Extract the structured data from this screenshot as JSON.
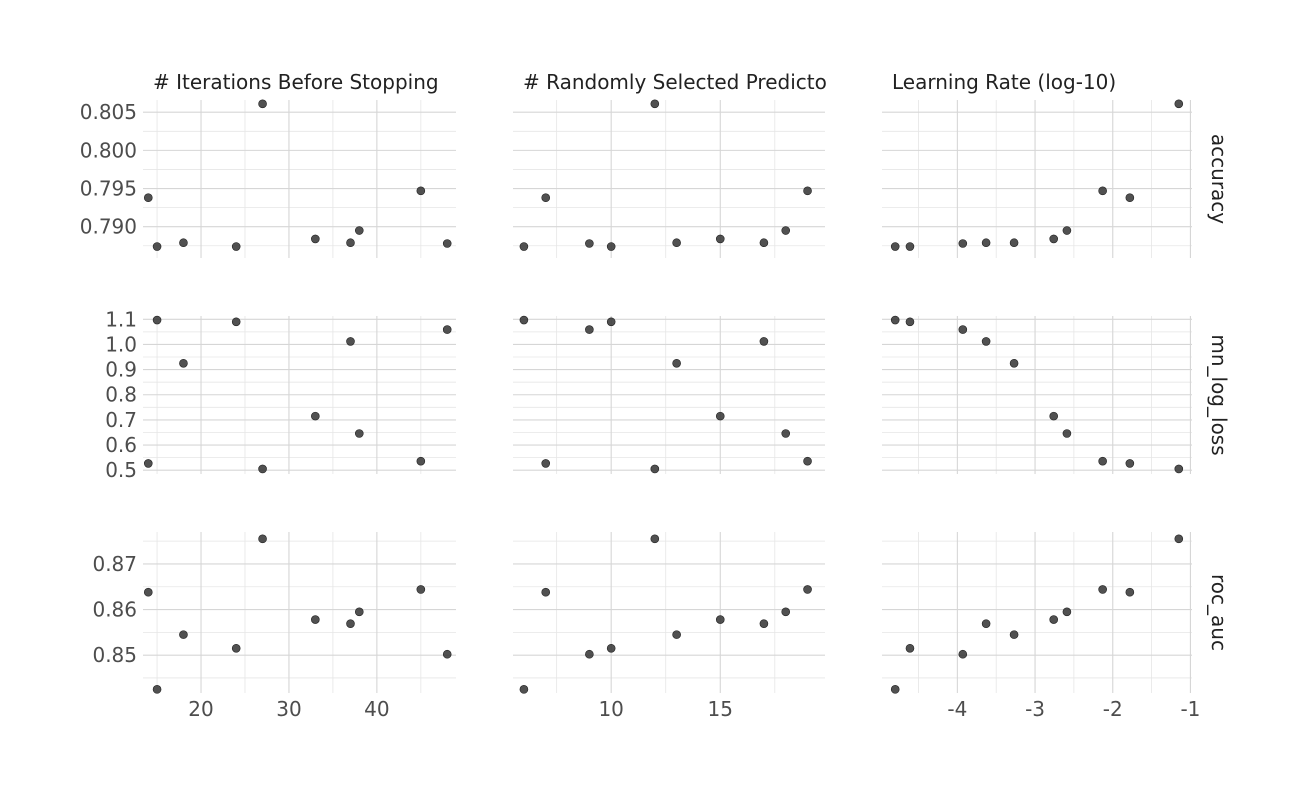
{
  "chart_data": {
    "type": "scatter",
    "facets": {
      "columns": [
        "# Iterations Before Stopping",
        "# Randomly Selected Predicto",
        "Learning Rate (log-10)"
      ],
      "rows": [
        "accuracy",
        "mn_log_loss",
        "roc_auc"
      ]
    },
    "x_axes": [
      {
        "range": [
          13.4,
          49.0
        ],
        "ticks": [
          20,
          30,
          40
        ],
        "tick_labels": [
          "20",
          "30",
          "40"
        ]
      },
      {
        "range": [
          5.5,
          19.8
        ],
        "ticks": [
          10,
          15
        ],
        "tick_labels": [
          "10",
          "15"
        ]
      },
      {
        "range": [
          -4.97,
          -0.98
        ],
        "ticks": [
          -4,
          -3,
          -2,
          -1
        ],
        "tick_labels": [
          "-4",
          "-3",
          "-2",
          "-1"
        ]
      }
    ],
    "y_axes": [
      {
        "range": [
          0.7859,
          0.8066
        ],
        "ticks": [
          0.79,
          0.795,
          0.8,
          0.805
        ],
        "tick_labels": [
          "0.790",
          "0.795",
          "0.800",
          "0.805"
        ]
      },
      {
        "range": [
          0.485,
          1.113
        ],
        "ticks": [
          0.5,
          0.6,
          0.7,
          0.8,
          0.9,
          1.0,
          1.1
        ],
        "tick_labels": [
          "0.5",
          "0.6",
          "0.7",
          "0.8",
          "0.9",
          "1.0",
          "1.1"
        ]
      },
      {
        "range": [
          0.8417,
          0.877
        ],
        "ticks": [
          0.85,
          0.86,
          0.87
        ],
        "tick_labels": [
          "0.85",
          "0.86",
          "0.87"
        ]
      }
    ],
    "configs": [
      {
        "iterations": 14,
        "predictors": 7,
        "learning_rate_log10": -1.78,
        "accuracy": 0.7938,
        "mn_log_loss": 0.527,
        "roc_auc": 0.8638
      },
      {
        "iterations": 15,
        "predictors": 6,
        "learning_rate_log10": -4.8,
        "accuracy": 0.7874,
        "mn_log_loss": 1.097,
        "roc_auc": 0.8425
      },
      {
        "iterations": 18,
        "predictors": 13,
        "learning_rate_log10": -3.27,
        "accuracy": 0.7879,
        "mn_log_loss": 0.925,
        "roc_auc": 0.8545
      },
      {
        "iterations": 24,
        "predictors": 10,
        "learning_rate_log10": -4.61,
        "accuracy": 0.7874,
        "mn_log_loss": 1.09,
        "roc_auc": 0.8515
      },
      {
        "iterations": 27,
        "predictors": 12,
        "learning_rate_log10": -1.15,
        "accuracy": 0.8061,
        "mn_log_loss": 0.505,
        "roc_auc": 0.8755
      },
      {
        "iterations": 33,
        "predictors": 15,
        "learning_rate_log10": -2.76,
        "accuracy": 0.7884,
        "mn_log_loss": 0.715,
        "roc_auc": 0.8578
      },
      {
        "iterations": 37,
        "predictors": 17,
        "learning_rate_log10": -3.63,
        "accuracy": 0.7879,
        "mn_log_loss": 1.012,
        "roc_auc": 0.8569
      },
      {
        "iterations": 38,
        "predictors": 18,
        "learning_rate_log10": -2.59,
        "accuracy": 0.7895,
        "mn_log_loss": 0.646,
        "roc_auc": 0.8595
      },
      {
        "iterations": 45,
        "predictors": 19,
        "learning_rate_log10": -2.13,
        "accuracy": 0.7947,
        "mn_log_loss": 0.536,
        "roc_auc": 0.8644
      },
      {
        "iterations": 48,
        "predictors": 9,
        "learning_rate_log10": -3.93,
        "accuracy": 0.7878,
        "mn_log_loss": 1.059,
        "roc_auc": 0.8502
      }
    ],
    "grid": true,
    "legend": "none"
  }
}
